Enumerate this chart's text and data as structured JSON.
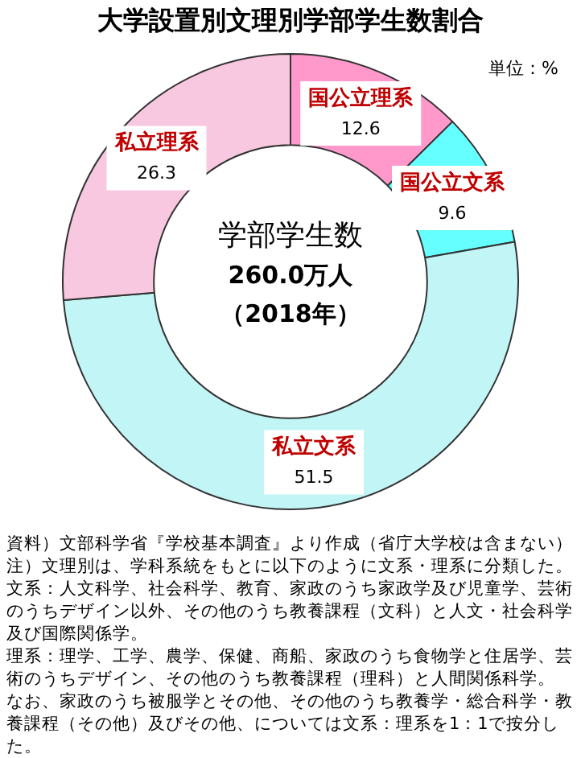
{
  "chart_data": {
    "type": "donut",
    "title": "大学設置別文理別学部学生数割合",
    "categories": [
      "国公立理系",
      "国公立文系",
      "私立文系",
      "私立理系"
    ],
    "values": [
      12.6,
      9.6,
      51.5,
      26.3
    ],
    "colors": [
      "#ff99cc",
      "#66ffff",
      "#c2f5f5",
      "#f7c8df"
    ],
    "data_labels": true,
    "legend": false,
    "annotations": [
      "単位：%",
      "学部学生数",
      "260.0万人",
      "（2018年）",
      "資料）文部科学省『学校基本調査』より作成（省庁大学校は含まない）",
      "注）文理別は、学科系統をもとに以下のように文系・理系に分類した。",
      "文系：人文科学、社会科学、教育、家政のうち家政学及び児童学、芸術のうちデザイン以外、その他のうち教養課程（文科）と人文・社会科学及び国際関係学。",
      "理系：理学、工学、農学、保健、商船、家政のうち食物学と住居学、芸術のうちデザイン、その他のうち教養課程（理科）と人間関係科学。",
      "なお、家政のうち被服学とその他、その他のうち教養学・総合科学・教養課程（その他）及びその他、については文系：理系を1：1で按分した。"
    ]
  }
}
